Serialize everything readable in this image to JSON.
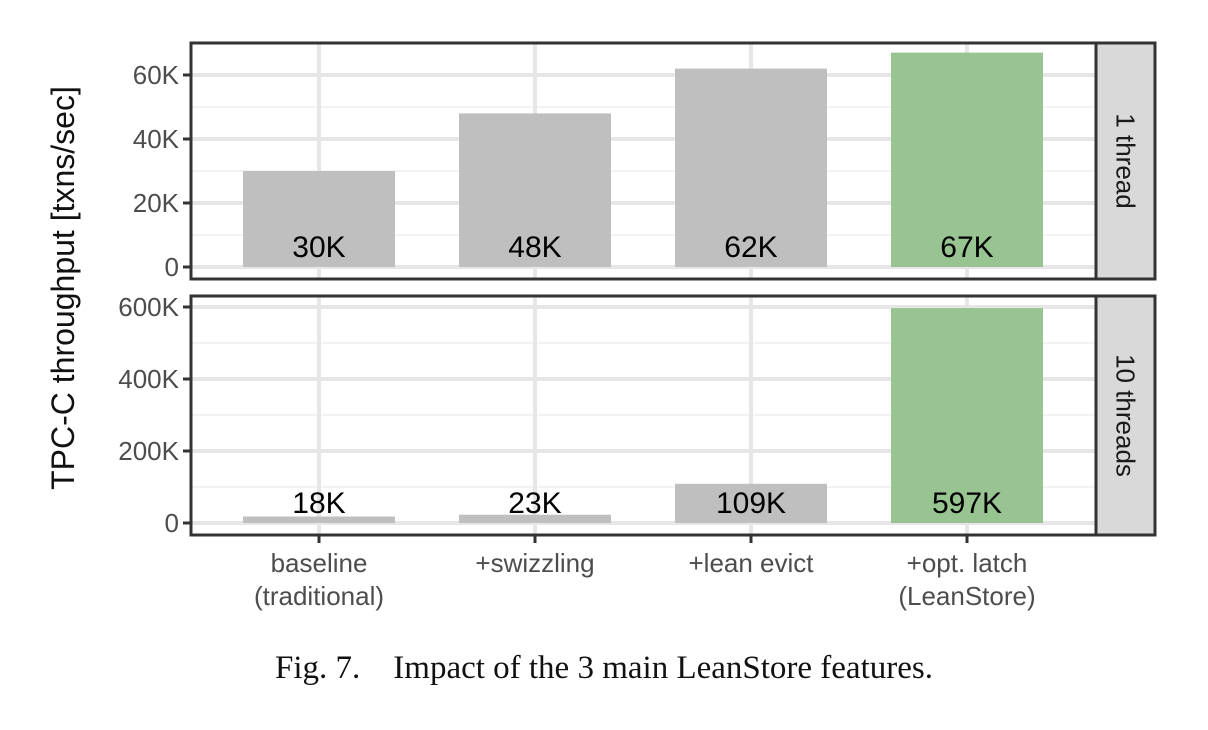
{
  "chart_data": {
    "type": "bar",
    "ylabel": "TPC-C throughput [txns/sec]",
    "categories": [
      [
        "baseline",
        "(traditional)"
      ],
      [
        "+swizzling"
      ],
      [
        "+lean evict"
      ],
      [
        "+opt. latch",
        "(LeanStore)"
      ]
    ],
    "panels": [
      {
        "strip_label": "1 thread",
        "values": [
          30000,
          48000,
          62000,
          67000
        ],
        "value_labels": [
          "30K",
          "48K",
          "62K",
          "67K"
        ],
        "ylim": [
          0,
          70000
        ],
        "yticks": [
          0,
          20000,
          40000,
          60000
        ],
        "ytick_labels": [
          "0",
          "20K",
          "40K",
          "60K"
        ]
      },
      {
        "strip_label": "10 threads",
        "values": [
          18000,
          23000,
          109000,
          597000
        ],
        "value_labels": [
          "18K",
          "23K",
          "109K",
          "597K"
        ],
        "ylim": [
          0,
          620000
        ],
        "yticks": [
          0,
          200000,
          400000,
          600000
        ],
        "ytick_labels": [
          "0",
          "200K",
          "400K",
          "600K"
        ]
      }
    ],
    "bar_colors": [
      "#bfbfbf",
      "#bfbfbf",
      "#bfbfbf",
      "#98c492"
    ],
    "grid": true
  },
  "caption": {
    "number": "Fig. 7.",
    "text": "Impact of the 3 main LeanStore features."
  }
}
